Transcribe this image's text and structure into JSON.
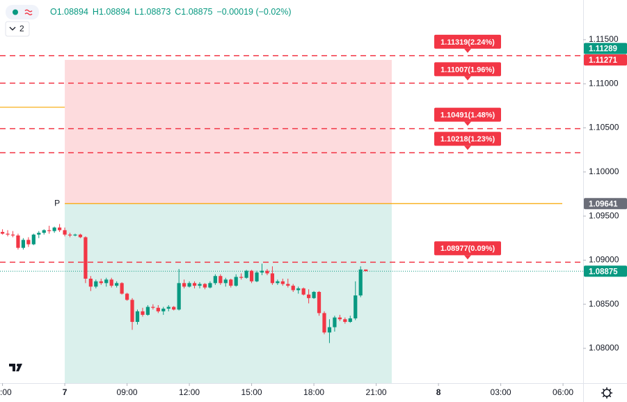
{
  "chart_data": {
    "type": "candlestick",
    "ohlc_header": [
      "O1.08894",
      "H1.08894",
      "L1.08873",
      "C1.08875",
      "−0.00019 (−0.02%)"
    ],
    "indicator_count": "2",
    "up_color": "#089981",
    "down_color": "#f23645",
    "xlim": [
      2.88,
      30.97
    ],
    "ylim": [
      1.07605,
      1.1195
    ],
    "xticks": [
      {
        "value": 3,
        "label": ":00"
      },
      {
        "value": 6,
        "label": "7"
      },
      {
        "value": 9,
        "label": "09:00"
      },
      {
        "value": 12,
        "label": "12:00"
      },
      {
        "value": 15,
        "label": "15:00"
      },
      {
        "value": 18,
        "label": "18:00"
      },
      {
        "value": 21,
        "label": "21:00"
      },
      {
        "value": 24,
        "label": "8"
      },
      {
        "value": 27,
        "label": "03:00"
      },
      {
        "value": 30,
        "label": "06:00"
      }
    ],
    "yticks": [
      {
        "value": 1.115,
        "label": "1.11500"
      },
      {
        "value": 1.11,
        "label": "1.11000"
      },
      {
        "value": 1.105,
        "label": "1.10500"
      },
      {
        "value": 1.1,
        "label": "1.10000"
      },
      {
        "value": 1.095,
        "label": "1.09500"
      },
      {
        "value": 1.09,
        "label": "1.09000"
      },
      {
        "value": 1.085,
        "label": "1.08500"
      },
      {
        "value": 1.08,
        "label": "1.08000"
      }
    ],
    "x": [
      3,
      3.25,
      3.5,
      3.75,
      4,
      4.25,
      4.5,
      4.75,
      5,
      5.25,
      5.5,
      5.75,
      6,
      6.25,
      6.5,
      6.75,
      7,
      7.25,
      7.5,
      7.75,
      8,
      8.25,
      8.5,
      8.75,
      9,
      9.25,
      9.5,
      9.75,
      10,
      10.25,
      10.5,
      10.75,
      11,
      11.25,
      11.5,
      11.75,
      12,
      12.25,
      12.5,
      12.75,
      13,
      13.25,
      13.5,
      13.75,
      14,
      14.25,
      14.5,
      14.75,
      15,
      15.25,
      15.5,
      15.75,
      16,
      16.25,
      16.5,
      16.75,
      17,
      17.25,
      17.5,
      17.75,
      18,
      18.25,
      18.5,
      18.75,
      19,
      19.25,
      19.5,
      19.75,
      20,
      20.25,
      20.5
    ],
    "open": [
      1.0932,
      1.093,
      1.0929,
      1.0928,
      1.0914,
      1.0923,
      1.0918,
      1.0929,
      1.0931,
      1.0934,
      1.0933,
      1.0937,
      1.0934,
      1.0929,
      1.0928,
      1.0929,
      1.0926,
      1.0879,
      1.087,
      1.0876,
      1.0874,
      1.0878,
      1.0871,
      1.0874,
      1.0862,
      1.0855,
      1.083,
      1.0842,
      1.0838,
      1.0847,
      1.0846,
      1.0842,
      1.0845,
      1.0847,
      1.0844,
      1.0874,
      1.087,
      1.0874,
      1.0871,
      1.0873,
      1.0869,
      1.0874,
      1.0882,
      1.0874,
      1.0878,
      1.0871,
      1.0881,
      1.088,
      1.0888,
      1.0876,
      1.0886,
      1.0888,
      1.0885,
      1.0874,
      1.0876,
      1.0873,
      1.0871,
      1.0866,
      1.0868,
      1.0861,
      1.0857,
      1.0864,
      1.084,
      1.0818,
      1.0824,
      1.0835,
      1.0833,
      1.083,
      1.0834,
      1.086,
      1.08894
    ],
    "high": [
      1.0935,
      1.0934,
      1.0933,
      1.093,
      1.0925,
      1.0926,
      1.093,
      1.0933,
      1.0935,
      1.0939,
      1.0938,
      1.0941,
      1.0937,
      1.0931,
      1.093,
      1.093,
      1.0927,
      1.0882,
      1.0878,
      1.0879,
      1.088,
      1.088,
      1.0876,
      1.0875,
      1.0863,
      1.0857,
      1.0844,
      1.0846,
      1.0849,
      1.085,
      1.0849,
      1.0847,
      1.0849,
      1.0848,
      1.089,
      1.0878,
      1.0876,
      1.0876,
      1.0875,
      1.0874,
      1.0876,
      1.0884,
      1.0884,
      1.088,
      1.0879,
      1.0884,
      1.0885,
      1.0889,
      1.0889,
      1.0888,
      1.0896,
      1.089,
      1.0893,
      1.0878,
      1.0879,
      1.0879,
      1.0873,
      1.087,
      1.0869,
      1.0867,
      1.0865,
      1.0865,
      1.0842,
      1.0833,
      1.0837,
      1.0838,
      1.0835,
      1.0837,
      1.0876,
      1.0893,
      1.08894
    ],
    "low": [
      1.0929,
      1.0927,
      1.0926,
      1.0912,
      1.0912,
      1.0915,
      1.0917,
      1.0925,
      1.0929,
      1.093,
      1.0931,
      1.0932,
      1.0927,
      1.0926,
      1.0927,
      1.0925,
      1.0874,
      1.0865,
      1.0868,
      1.0872,
      1.087,
      1.0869,
      1.0869,
      1.0861,
      1.0854,
      1.0821,
      1.0827,
      1.0836,
      1.0837,
      1.0844,
      1.084,
      1.0838,
      1.0842,
      1.0843,
      1.0843,
      1.0868,
      1.0869,
      1.0868,
      1.0868,
      1.0867,
      1.0868,
      1.0872,
      1.0872,
      1.087,
      1.0869,
      1.087,
      1.0878,
      1.0879,
      1.0874,
      1.0875,
      1.0883,
      1.0883,
      1.0872,
      1.0872,
      1.0871,
      1.0869,
      1.0864,
      1.0862,
      1.086,
      1.0851,
      1.0856,
      1.0837,
      1.0816,
      1.0806,
      1.0819,
      1.0831,
      1.0828,
      1.0829,
      1.0832,
      1.0858,
      1.08873
    ],
    "close": [
      1.093,
      1.0929,
      1.0928,
      1.0914,
      1.0923,
      1.0918,
      1.0929,
      1.0931,
      1.0934,
      1.0933,
      1.0937,
      1.0934,
      1.0929,
      1.0928,
      1.0929,
      1.0926,
      1.0879,
      1.087,
      1.0876,
      1.0874,
      1.0878,
      1.0871,
      1.0874,
      1.0862,
      1.0855,
      1.083,
      1.0842,
      1.0838,
      1.0847,
      1.0846,
      1.0842,
      1.0845,
      1.0847,
      1.0844,
      1.0874,
      1.087,
      1.0874,
      1.0871,
      1.0873,
      1.0869,
      1.0874,
      1.0882,
      1.0874,
      1.0878,
      1.0871,
      1.0881,
      1.088,
      1.0888,
      1.0876,
      1.0886,
      1.0888,
      1.0885,
      1.0874,
      1.0876,
      1.0873,
      1.0871,
      1.0866,
      1.0868,
      1.0861,
      1.0857,
      1.0864,
      1.084,
      1.0818,
      1.0824,
      1.0835,
      1.0833,
      1.083,
      1.0834,
      1.086,
      1.08894,
      1.08875
    ],
    "levels": [
      {
        "value": 1.11319,
        "label": "1.11319(2.24%)"
      },
      {
        "value": 1.11007,
        "label": "1.11007(1.96%)"
      },
      {
        "value": 1.10491,
        "label": "1.10491(1.48%)"
      },
      {
        "value": 1.10218,
        "label": "1.10218(1.23%)"
      },
      {
        "value": 1.08977,
        "label": "1.08977(0.09%)"
      }
    ],
    "level_color": "#f23645",
    "position": {
      "entry": 1.09641,
      "stop": 1.11271,
      "start": 6,
      "end": 21.75,
      "label": "P",
      "line_color": "#f7a600"
    },
    "prior_line": {
      "value": 1.10734,
      "end": 6,
      "color": "#f7a600"
    },
    "price_badges": [
      {
        "value": 1.11271,
        "color": "#f23645"
      },
      {
        "value": 1.11289,
        "color": "#089981"
      },
      {
        "value": 1.09641,
        "color": "#6a6d78"
      },
      {
        "value": 1.08875,
        "color": "#089981"
      }
    ]
  }
}
